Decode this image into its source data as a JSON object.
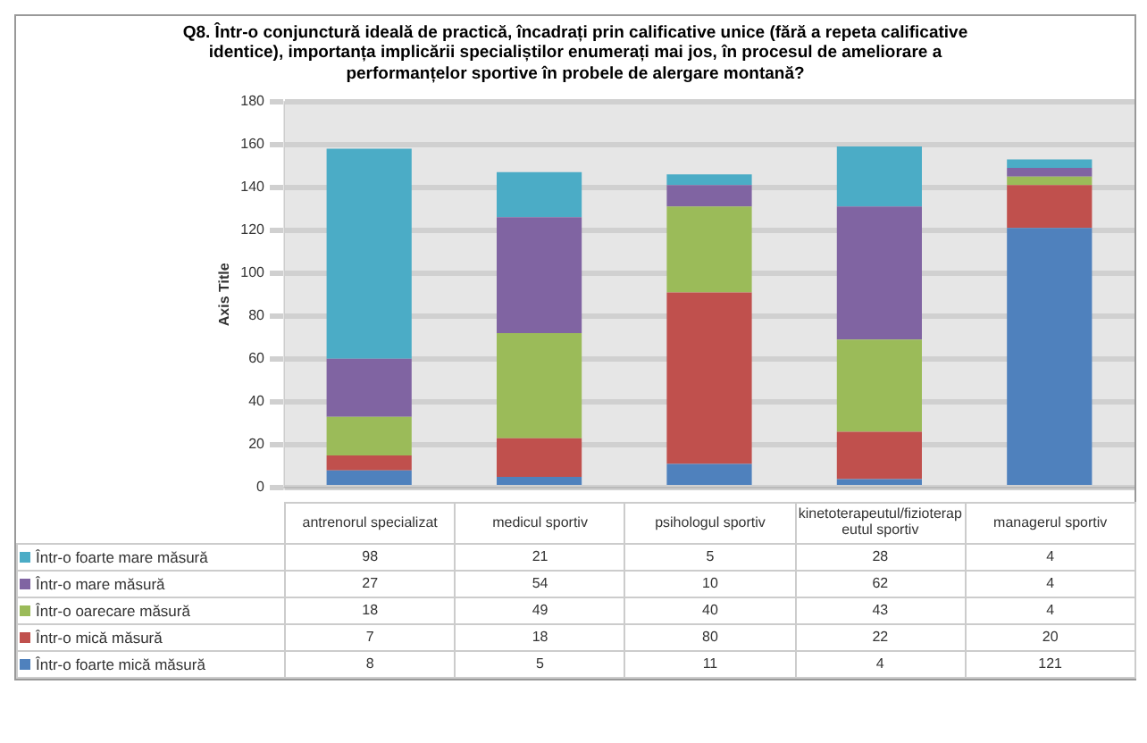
{
  "chart_data": {
    "type": "bar",
    "title": "Q8. Într-o conjunctură ideală de practică, încadrați prin calificative unice (fără a repeta calificative identice), importanța implicării specialiștilor enumerați mai jos, în procesul de ameliorare a performanțelor sportive în probele de alergare montană?",
    "ylabel": "Axis Title",
    "categories": [
      "antrenorul specializat",
      "medicul sportiv",
      "psihologul sportiv",
      "kinetoterapeutul/fizioterapeutul sportiv",
      "managerul sportiv"
    ],
    "stacked": true,
    "series": [
      {
        "name": "Într-o foarte mică măsură",
        "color": "#4f81bd",
        "values": [
          8,
          5,
          11,
          4,
          121
        ]
      },
      {
        "name": "Într-o mică măsură",
        "color": "#c0504d",
        "values": [
          7,
          18,
          80,
          22,
          20
        ]
      },
      {
        "name": "Într-o oarecare măsură",
        "color": "#9bbb59",
        "values": [
          18,
          49,
          40,
          43,
          4
        ]
      },
      {
        "name": "Într-o mare măsură",
        "color": "#8064a2",
        "values": [
          27,
          54,
          10,
          62,
          4
        ]
      },
      {
        "name": "Într-o foarte mare măsură",
        "color": "#4bacc6",
        "values": [
          98,
          21,
          5,
          28,
          4
        ]
      }
    ],
    "ylim": [
      0,
      180
    ],
    "yticks": [
      0,
      20,
      40,
      60,
      80,
      100,
      120,
      140,
      160,
      180
    ],
    "grid": "y",
    "legend": "bottom",
    "data_labels": true
  }
}
